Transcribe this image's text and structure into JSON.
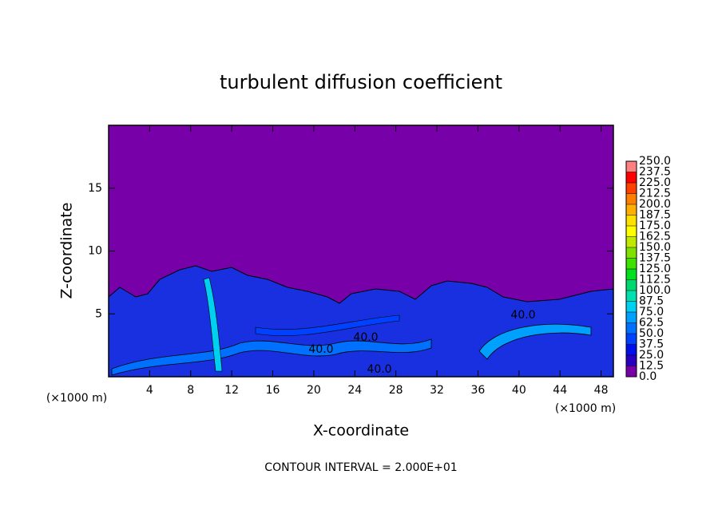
{
  "chart_data": {
    "type": "contour",
    "title": "turbulent diffusion coefficient",
    "x_label": "X-coordinate",
    "y_label": "Z-coordinate",
    "x_unit": "(×1000 m)",
    "y_unit": "(×1000 m)",
    "xlim": [
      0,
      49.2
    ],
    "ylim": [
      0,
      20
    ],
    "xticks": [
      4,
      8,
      12,
      16,
      20,
      24,
      28,
      32,
      36,
      40,
      44,
      48
    ],
    "yticks": [
      5,
      10,
      15
    ],
    "colorbar": {
      "levels": [
        {
          "value": 0,
          "label": "0.0"
        },
        {
          "value": 12.5,
          "label": "12.5"
        },
        {
          "value": 25,
          "label": "25.0"
        },
        {
          "value": 37.5,
          "label": "37.5"
        },
        {
          "value": 50,
          "label": "50.0"
        },
        {
          "value": 62.5,
          "label": "62.5"
        },
        {
          "value": 75,
          "label": "75.0"
        },
        {
          "value": 87.5,
          "label": "87.5"
        },
        {
          "value": 100,
          "label": "100.0"
        },
        {
          "value": 112.5,
          "label": "112.5"
        },
        {
          "value": 125,
          "label": "125.0"
        },
        {
          "value": 137.5,
          "label": "137.5"
        },
        {
          "value": 150,
          "label": "150.0"
        },
        {
          "value": 162.5,
          "label": "162.5"
        },
        {
          "value": 175,
          "label": "175.0"
        },
        {
          "value": 187.5,
          "label": "187.5"
        },
        {
          "value": 200,
          "label": "200.0"
        },
        {
          "value": 212.5,
          "label": "212.5"
        },
        {
          "value": 225,
          "label": "225.0"
        },
        {
          "value": 237.5,
          "label": "237.5"
        },
        {
          "value": 250,
          "label": "250.0"
        }
      ],
      "colors": [
        "#7800a8",
        "#2800c0",
        "#0010e8",
        "#0040ff",
        "#0070ff",
        "#00a0ff",
        "#00d0f0",
        "#00e0b0",
        "#00d870",
        "#00e020",
        "#40e000",
        "#80e000",
        "#c0e800",
        "#ffff00",
        "#ffe000",
        "#ffb000",
        "#ff8000",
        "#ff4000",
        "#ff0000",
        "#ff8080"
      ]
    },
    "contour_labels": [
      {
        "value": 40,
        "label": "40.0"
      },
      {
        "value": 40,
        "label": "40.0"
      },
      {
        "value": 40,
        "label": "40.0"
      },
      {
        "value": 40,
        "label": "40.0"
      }
    ],
    "footnote": "CONTOUR INTERVAL = 2.000E+01"
  }
}
